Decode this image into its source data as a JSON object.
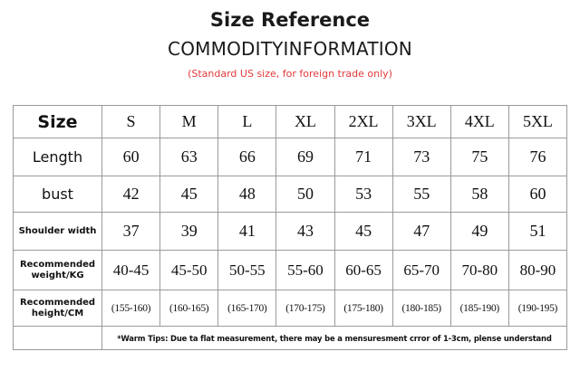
{
  "heading": {
    "title": "Size Reference",
    "subtitle": "COMMODITYINFORMATION",
    "note": "(Standard US size, for foreign trade only)",
    "note_color": "#e5393a"
  },
  "table": {
    "header_label": "Size",
    "sizes": [
      "S",
      "M",
      "L",
      "XL",
      "2XL",
      "3XL",
      "4XL",
      "5XL"
    ],
    "rows": [
      {
        "label": "Length",
        "values": [
          "60",
          "63",
          "66",
          "69",
          "71",
          "73",
          "75",
          "76"
        ]
      },
      {
        "label": "bust",
        "values": [
          "42",
          "45",
          "48",
          "50",
          "53",
          "55",
          "58",
          "60"
        ]
      },
      {
        "label": "Shoulder width",
        "values": [
          "37",
          "39",
          "41",
          "43",
          "45",
          "47",
          "49",
          "51"
        ]
      },
      {
        "label": "Recommended weight/KG",
        "values": [
          "40-45",
          "45-50",
          "50-55",
          "55-60",
          "60-65",
          "65-70",
          "70-80",
          "80-90"
        ]
      },
      {
        "label": "Recommended height/CM",
        "values": [
          "(155-160)",
          "(160-165)",
          "(165-170)",
          "(170-175)",
          "(175-180)",
          "(180-185)",
          "(185-190)",
          "(190-195)"
        ]
      }
    ],
    "tips": "*Warm Tips: Due ta flat measurement, there may be a mensuresment crror of 1-3cm, plense understand"
  }
}
